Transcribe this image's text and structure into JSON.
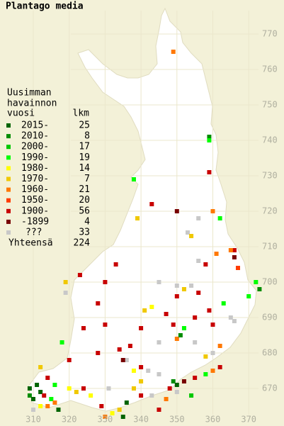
{
  "title": "Plantago media",
  "legend": {
    "heading": [
      "Uusimman",
      "havainnon"
    ],
    "col_year": "vuosi",
    "col_count": "lkm",
    "rows": [
      {
        "label": "2015-",
        "count": 25,
        "color": "#006400"
      },
      {
        "label": "2010-",
        "count": 8,
        "color": "#008c00"
      },
      {
        "label": "2000-",
        "count": 17,
        "color": "#00c800"
      },
      {
        "label": "1990-",
        "count": 19,
        "color": "#00ff00"
      },
      {
        "label": "1980-",
        "count": 14,
        "color": "#ffff00"
      },
      {
        "label": "1970-",
        "count": 7,
        "color": "#f0c800"
      },
      {
        "label": "1960-",
        "count": 21,
        "color": "#ff7800"
      },
      {
        "label": "1950-",
        "count": 20,
        "color": "#ff3c00"
      },
      {
        "label": "1900-",
        "count": 56,
        "color": "#c80000"
      },
      {
        "label": "-1899",
        "count": 4,
        "color": "#780000"
      },
      {
        "label": "???",
        "count": 33,
        "color": "#c8c8c8"
      }
    ],
    "total_label": "Yhteensä",
    "total": 224
  },
  "axes": {
    "north": [
      770,
      760,
      750,
      740,
      730,
      720,
      710,
      700,
      690,
      680,
      670
    ],
    "east": [
      310,
      320,
      330,
      340,
      350,
      360,
      370
    ]
  },
  "squares": [
    [
      349,
      765,
      6
    ],
    [
      359,
      741,
      1
    ],
    [
      359,
      740,
      3
    ],
    [
      338,
      729,
      3
    ],
    [
      359,
      731,
      8
    ],
    [
      343,
      722,
      8
    ],
    [
      350,
      720,
      9
    ],
    [
      362,
      718,
      3
    ],
    [
      360,
      720,
      6
    ],
    [
      356,
      718,
      10
    ],
    [
      339,
      718,
      5
    ],
    [
      353,
      714,
      10
    ],
    [
      354,
      713,
      5
    ],
    [
      366,
      709,
      8
    ],
    [
      365,
      709,
      6
    ],
    [
      366,
      707,
      9
    ],
    [
      361,
      708,
      6
    ],
    [
      358,
      705,
      8
    ],
    [
      356,
      706,
      10
    ],
    [
      367,
      704,
      7
    ],
    [
      372,
      700,
      3
    ],
    [
      373,
      698,
      1
    ],
    [
      370,
      696,
      3
    ],
    [
      319,
      700,
      5
    ],
    [
      323,
      702,
      8
    ],
    [
      333,
      705,
      8
    ],
    [
      328,
      694,
      8
    ],
    [
      319,
      697,
      10
    ],
    [
      330,
      700,
      8
    ],
    [
      345,
      700,
      10
    ],
    [
      350,
      699,
      10
    ],
    [
      350,
      696,
      8
    ],
    [
      352,
      698,
      5
    ],
    [
      354,
      699,
      10
    ],
    [
      356,
      697,
      8
    ],
    [
      341,
      692,
      5
    ],
    [
      343,
      693,
      4
    ],
    [
      347,
      691,
      8
    ],
    [
      355,
      690,
      8
    ],
    [
      359,
      692,
      8
    ],
    [
      360,
      688,
      8
    ],
    [
      363,
      694,
      3
    ],
    [
      365,
      690,
      10
    ],
    [
      366,
      689,
      10
    ],
    [
      349,
      688,
      8
    ],
    [
      350,
      684,
      6
    ],
    [
      351,
      685,
      1
    ],
    [
      352,
      687,
      3
    ],
    [
      345,
      683,
      10
    ],
    [
      355,
      683,
      10
    ],
    [
      324,
      687,
      8
    ],
    [
      330,
      688,
      8
    ],
    [
      340,
      687,
      8
    ],
    [
      337,
      682,
      8
    ],
    [
      334,
      681,
      8
    ],
    [
      336,
      678,
      10
    ],
    [
      328,
      680,
      8
    ],
    [
      318,
      683,
      3
    ],
    [
      312,
      676,
      5
    ],
    [
      320,
      678,
      8
    ],
    [
      335,
      678,
      9
    ],
    [
      340,
      676,
      8
    ],
    [
      342,
      675,
      10
    ],
    [
      338,
      675,
      4
    ],
    [
      340,
      672,
      5
    ],
    [
      345,
      674,
      10
    ],
    [
      349,
      672,
      1
    ],
    [
      350,
      671,
      0
    ],
    [
      352,
      672,
      9
    ],
    [
      355,
      673,
      8
    ],
    [
      358,
      674,
      3
    ],
    [
      360,
      675,
      6
    ],
    [
      362,
      676,
      8
    ],
    [
      358,
      679,
      5
    ],
    [
      360,
      680,
      10
    ],
    [
      362,
      682,
      6
    ],
    [
      354,
      668,
      2
    ],
    [
      350,
      669,
      10
    ],
    [
      348,
      670,
      8
    ],
    [
      347,
      667,
      6
    ],
    [
      345,
      664,
      8
    ],
    [
      343,
      668,
      10
    ],
    [
      340,
      668,
      8
    ],
    [
      336,
      666,
      0
    ],
    [
      335,
      662,
      0
    ],
    [
      330,
      662,
      6
    ],
    [
      332,
      663,
      4
    ],
    [
      334,
      664,
      5
    ],
    [
      329,
      665,
      8
    ],
    [
      326,
      668,
      4
    ],
    [
      324,
      670,
      8
    ],
    [
      322,
      669,
      5
    ],
    [
      320,
      670,
      4
    ],
    [
      316,
      671,
      3
    ],
    [
      314,
      673,
      8
    ],
    [
      311,
      671,
      0
    ],
    [
      309,
      670,
      0
    ],
    [
      309,
      668,
      1
    ],
    [
      310,
      667,
      0
    ],
    [
      312,
      669,
      0
    ],
    [
      313,
      668,
      8
    ],
    [
      315,
      667,
      3
    ],
    [
      314,
      665,
      6
    ],
    [
      316,
      666,
      6
    ],
    [
      317,
      664,
      0
    ],
    [
      312,
      665,
      4
    ],
    [
      310,
      664,
      10
    ],
    [
      331,
      670,
      10
    ],
    [
      338,
      670,
      5
    ]
  ]
}
